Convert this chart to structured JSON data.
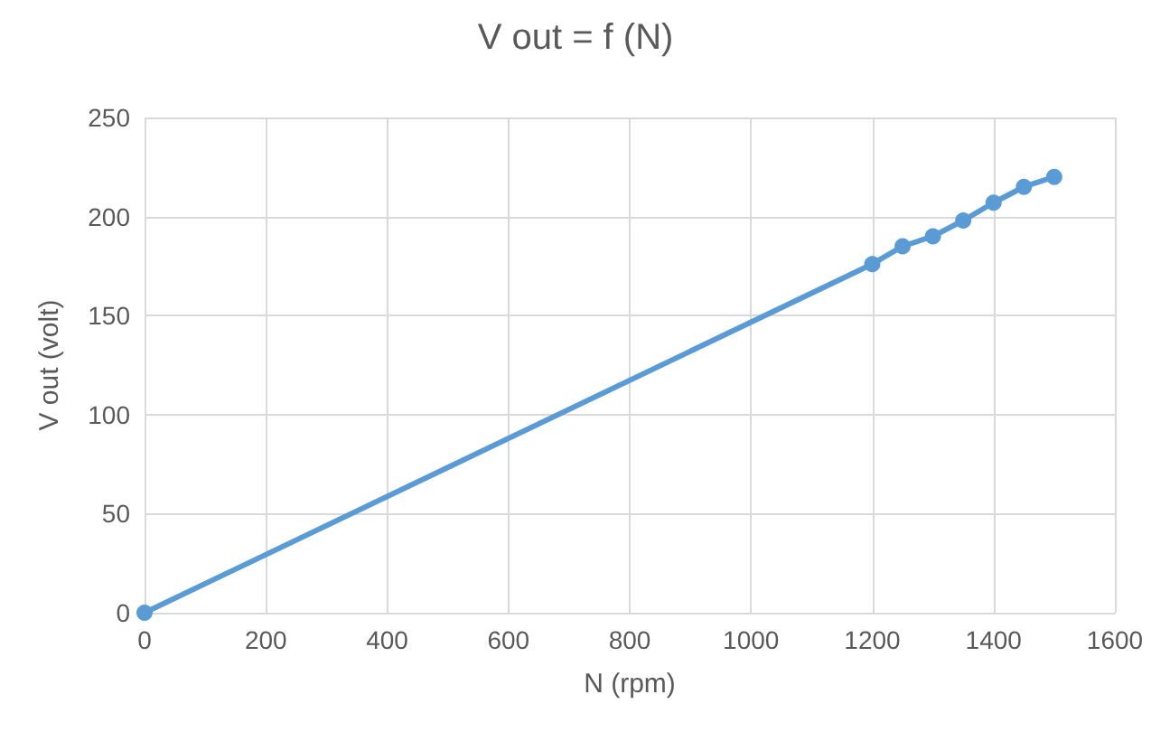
{
  "chart_data": {
    "type": "line",
    "title": "V out = f (N)",
    "xlabel": "N (rpm)",
    "ylabel": "V out (volt)",
    "x": [
      0,
      1200,
      1250,
      1300,
      1350,
      1400,
      1450,
      1500
    ],
    "series": [
      {
        "color": "#5b9bd5",
        "values": [
          0,
          176,
          185,
          190,
          198,
          207,
          215,
          220
        ]
      }
    ],
    "xlim": [
      0,
      1600
    ],
    "xticks": [
      0,
      200,
      400,
      600,
      800,
      1000,
      1200,
      1400,
      1600
    ],
    "ylim": [
      0,
      250
    ],
    "yticks": [
      0,
      50,
      100,
      150,
      200,
      250
    ],
    "grid": true,
    "marker": "circle",
    "line_style": "solid"
  }
}
